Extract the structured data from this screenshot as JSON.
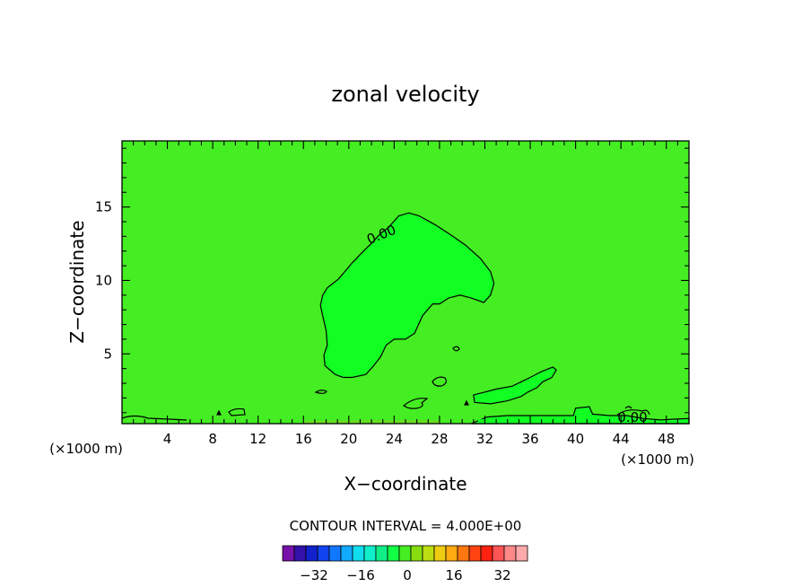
{
  "chart_data": {
    "type": "heatmap",
    "title": "zonal velocity",
    "xlabel": "X−coordinate",
    "ylabel": "Z−coordinate",
    "x_unit_label": "(×1000 m)",
    "x_unit_label_right": "(×1000 m)",
    "xlim": [
      0,
      50
    ],
    "ylim": [
      0.25,
      19.5
    ],
    "x_ticks": [
      4,
      8,
      12,
      16,
      20,
      24,
      28,
      32,
      36,
      40,
      44,
      48
    ],
    "y_ticks": [
      5,
      10,
      15
    ],
    "contour_interval_text": "CONTOUR INTERVAL = 4.000E+00",
    "contour_labels": [
      "0.00",
      "0.00"
    ],
    "background_color": "#44ee22",
    "regions": [
      {
        "name": "positive lobe",
        "color": "#11ff22",
        "points": [
          [
            18.8,
            3.6
          ],
          [
            19.5,
            3.4
          ],
          [
            20.3,
            3.4
          ],
          [
            21.5,
            3.6
          ],
          [
            22.2,
            4.2
          ],
          [
            22.8,
            4.8
          ],
          [
            23.3,
            5.6
          ],
          [
            24.0,
            6.0
          ],
          [
            25.0,
            6.0
          ],
          [
            25.8,
            6.4
          ],
          [
            26.5,
            7.6
          ],
          [
            27.4,
            8.4
          ],
          [
            28.0,
            8.4
          ],
          [
            28.8,
            8.8
          ],
          [
            29.8,
            9.0
          ],
          [
            30.8,
            8.8
          ],
          [
            31.9,
            8.5
          ],
          [
            32.5,
            9.0
          ],
          [
            32.8,
            9.8
          ],
          [
            32.5,
            10.6
          ],
          [
            31.6,
            11.5
          ],
          [
            30.3,
            12.4
          ],
          [
            29.0,
            13.1
          ],
          [
            27.6,
            13.8
          ],
          [
            26.2,
            14.4
          ],
          [
            25.3,
            14.6
          ],
          [
            24.4,
            14.4
          ],
          [
            23.5,
            13.6
          ],
          [
            22.8,
            13.2
          ],
          [
            22.1,
            12.6
          ],
          [
            21.3,
            12.0
          ],
          [
            20.3,
            11.2
          ],
          [
            19.1,
            10.1
          ],
          [
            18.1,
            9.5
          ],
          [
            17.7,
            9.0
          ],
          [
            17.5,
            8.3
          ],
          [
            17.7,
            7.6
          ],
          [
            18.0,
            6.6
          ],
          [
            18.1,
            5.6
          ],
          [
            17.8,
            4.9
          ],
          [
            17.9,
            4.2
          ]
        ]
      },
      {
        "name": "near-surface positive",
        "color": "#11ff22",
        "points": [
          [
            30.8,
            0.25
          ],
          [
            32.2,
            0.7
          ],
          [
            34.0,
            0.8
          ],
          [
            36.0,
            0.8
          ],
          [
            38.0,
            0.8
          ],
          [
            39.8,
            0.8
          ],
          [
            40.0,
            1.3
          ],
          [
            41.2,
            1.4
          ],
          [
            41.5,
            0.9
          ],
          [
            43.0,
            0.8
          ],
          [
            44.5,
            0.8
          ],
          [
            46.0,
            0.6
          ],
          [
            47.5,
            0.5
          ],
          [
            48.5,
            0.55
          ],
          [
            50,
            0.6
          ],
          [
            50,
            0.25
          ]
        ]
      },
      {
        "name": "band 2-3 km",
        "color": "#11ff22",
        "points": [
          [
            31.0,
            2.2
          ],
          [
            32.0,
            2.4
          ],
          [
            33.0,
            2.6
          ],
          [
            34.4,
            2.8
          ],
          [
            35.2,
            3.1
          ],
          [
            36.0,
            3.4
          ],
          [
            37.0,
            3.8
          ],
          [
            38.0,
            4.1
          ],
          [
            38.3,
            3.9
          ],
          [
            37.9,
            3.4
          ],
          [
            37.1,
            3.1
          ],
          [
            36.6,
            2.7
          ],
          [
            35.8,
            2.4
          ],
          [
            35.2,
            2.1
          ],
          [
            34.0,
            1.8
          ],
          [
            32.5,
            1.6
          ],
          [
            31.1,
            1.7
          ]
        ]
      },
      {
        "name": "surface strip A",
        "color": "#66dd22",
        "points": [
          [
            16.0,
            0.25
          ],
          [
            16.0,
            0.45
          ],
          [
            20.0,
            0.5
          ],
          [
            24.0,
            0.5
          ],
          [
            28.0,
            0.5
          ],
          [
            28.0,
            0.25
          ]
        ]
      },
      {
        "name": "surface strip B",
        "color": "#11ff22",
        "points": [
          [
            31.4,
            0.25
          ],
          [
            31.4,
            0.55
          ],
          [
            36.0,
            0.55
          ],
          [
            40.0,
            0.55
          ],
          [
            40.0,
            0.25
          ]
        ]
      }
    ]
  }
}
